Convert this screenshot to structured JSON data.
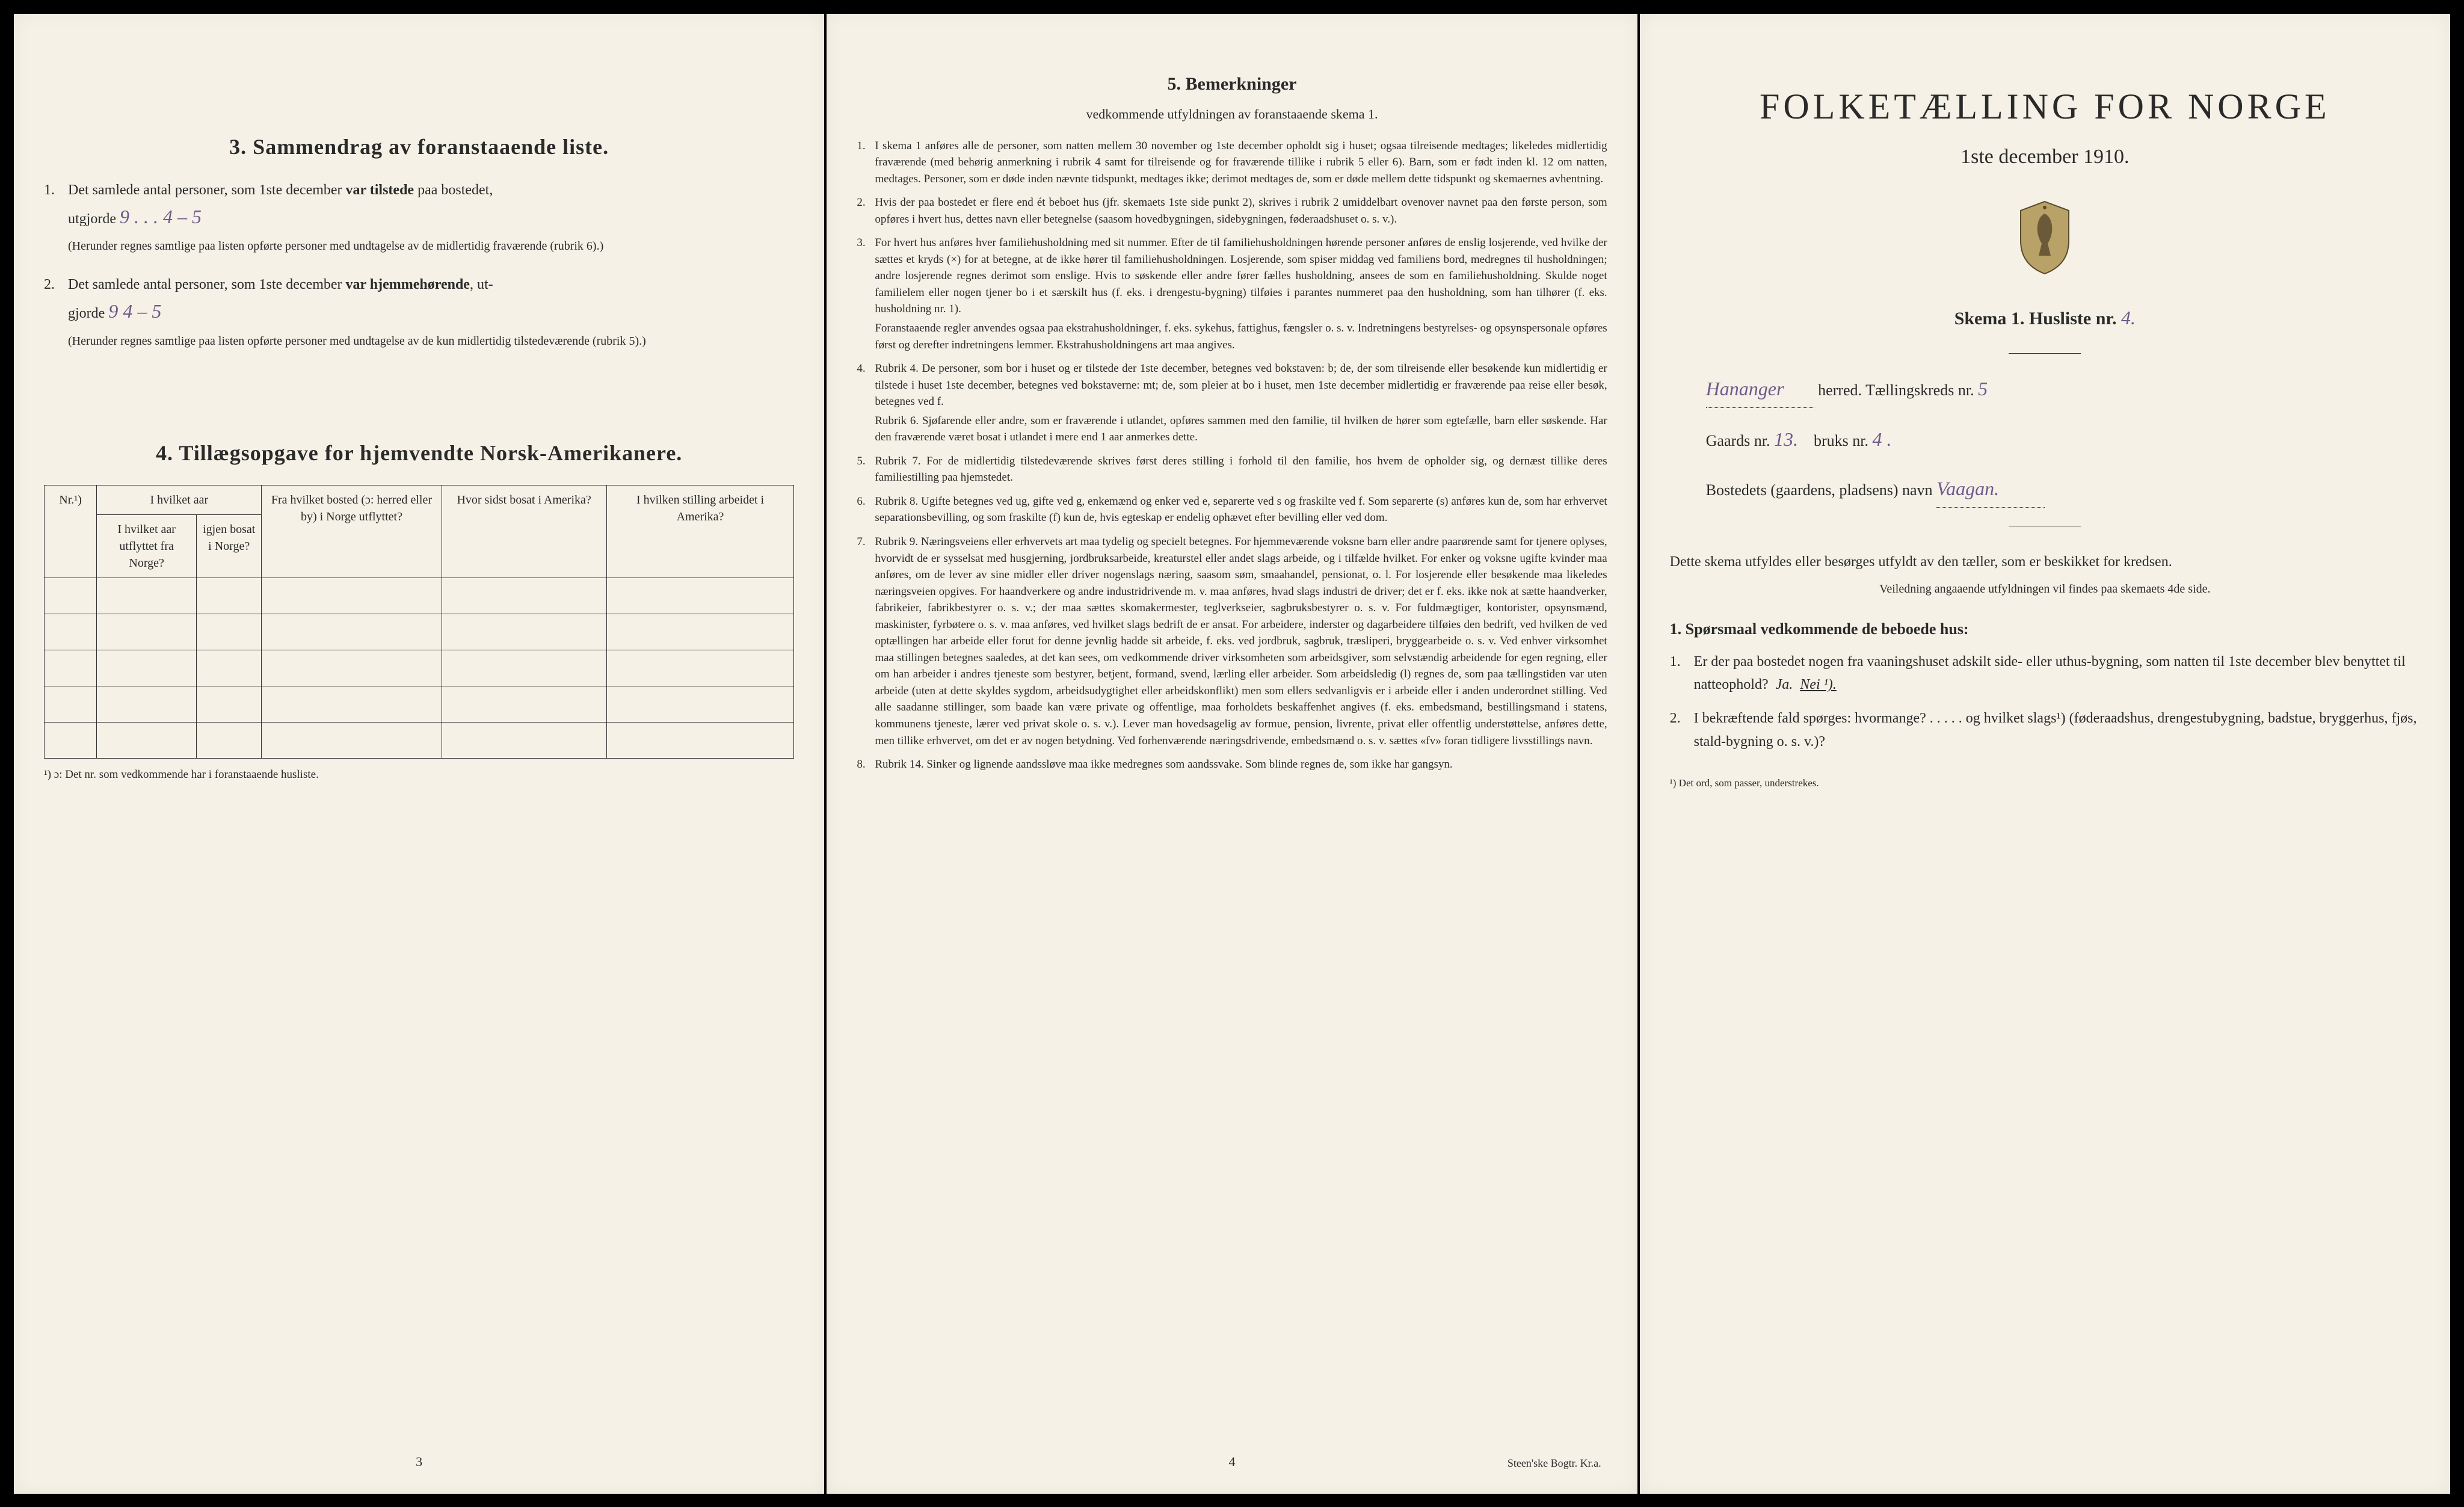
{
  "page1": {
    "section3_title": "3.  Sammendrag av foranstaaende liste.",
    "item1_lead": "Det samlede antal personer, som 1ste december",
    "item1_bold": "var tilstede",
    "item1_tail": "paa bostedet,",
    "item1_line2a": "utgjorde",
    "item1_hand": "9 . . . 4 – 5",
    "item1_note": "(Herunder regnes samtlige paa listen opførte personer med undtagelse av de midlertidig fraværende (rubrik 6).)",
    "item2_lead": "Det samlede antal personer,  som  1ste  december",
    "item2_bold": "var hjemmehørende",
    "item2_tail": ",  ut-",
    "item2_line2a": "gjorde",
    "item2_hand": "9      4 – 5",
    "item2_note": "(Herunder regnes samtlige paa listen opførte personer med undtagelse av de kun midlertidig tilstedeværende (rubrik 5).)",
    "section4_title": "4.  Tillægsopgave for hjemvendte Norsk-Amerikanere.",
    "table": {
      "cols": [
        "Nr.¹)",
        "I hvilket aar utflyttet fra Norge?",
        "igjen bosat i Norge?",
        "Fra hvilket bosted (ɔ: herred eller by) i Norge utflyttet?",
        "Hvor sidst bosat i Amerika?",
        "I hvilken stilling arbeidet i Amerika?"
      ]
    },
    "footnote": "¹) ɔ: Det nr. som vedkommende har i foranstaaende husliste.",
    "pagenum": "3"
  },
  "page2": {
    "title": "5.  Bemerkninger",
    "subtitle": "vedkommende utfyldningen av foranstaaende skema 1.",
    "items": [
      {
        "n": "1.",
        "t": "I skema 1 anføres alle de personer, som natten mellem 30 november og 1ste december opholdt sig i huset; ogsaa tilreisende medtages; likeledes midlertidig fraværende (med behørig anmerkning i rubrik 4 samt for tilreisende og for fraværende tillike i rubrik 5 eller 6). Barn, som er født inden kl. 12 om natten, medtages. Personer, som er døde inden nævnte tidspunkt, medtages ikke; derimot medtages de, som er døde mellem dette tidspunkt og skemaernes avhentning."
      },
      {
        "n": "2.",
        "t": "Hvis der paa bostedet er flere end ét beboet hus (jfr. skemaets 1ste side punkt 2), skrives i rubrik 2 umiddelbart ovenover navnet paa den første person, som opføres i hvert hus, dettes navn eller betegnelse (saasom hovedbygningen, sidebygningen, føderaadshuset o. s. v.)."
      },
      {
        "n": "3.",
        "t": "For hvert hus anføres hver familiehusholdning med sit nummer. Efter de til familiehusholdningen hørende personer anføres de enslig losjerende, ved hvilke der sættes et kryds (×) for at betegne, at de ikke hører til familiehusholdningen. Losjerende, som spiser middag ved familiens bord, medregnes til husholdningen; andre losjerende regnes derimot som enslige. Hvis to søskende eller andre fører fælles husholdning, ansees de som en familiehusholdning. Skulde noget familielem eller nogen tjener bo i et særskilt hus (f. eks. i drengestu-bygning) tilføies i parantes nummeret paa den husholdning, som han tilhører (f. eks. husholdning nr. 1).",
        "sub": "Foranstaaende regler anvendes ogsaa paa ekstrahusholdninger, f. eks. sykehus, fattighus, fængsler o. s. v. Indretningens bestyrelses- og opsynspersonale opføres først og derefter indretningens lemmer. Ekstrahusholdningens art maa angives."
      },
      {
        "n": "4.",
        "t": "Rubrik 4. De personer, som bor i huset og er tilstede der 1ste december, betegnes ved bokstaven: b; de, der som tilreisende eller besøkende kun midlertidig er tilstede i huset 1ste december, betegnes ved bokstaverne: mt; de, som pleier at bo i huset, men 1ste december midlertidig er fraværende paa reise eller besøk, betegnes ved f.",
        "sub": "Rubrik 6. Sjøfarende eller andre, som er fraværende i utlandet, opføres sammen med den familie, til hvilken de hører som egtefælle, barn eller søskende.  Har den fraværende været bosat i utlandet i mere end 1 aar anmerkes dette."
      },
      {
        "n": "5.",
        "t": "Rubrik 7. For de midlertidig tilstedeværende skrives først deres stilling i forhold til den familie, hos hvem de opholder sig, og dernæst tillike deres familiestilling paa hjemstedet."
      },
      {
        "n": "6.",
        "t": "Rubrik 8. Ugifte betegnes ved ug, gifte ved g, enkemænd og enker ved e, separerte ved s og fraskilte ved f. Som separerte (s) anføres kun de, som har erhvervet separationsbevilling, og som fraskilte (f) kun de, hvis egteskap er endelig ophævet efter bevilling eller ved dom."
      },
      {
        "n": "7.",
        "t": "Rubrik 9. Næringsveiens eller erhvervets art maa tydelig og specielt betegnes.  For hjemmeværende voksne barn eller andre paarørende samt for tjenere oplyses, hvorvidt de er sysselsat med husgjerning, jordbruksarbeide, kreaturstel eller andet slags arbeide, og i tilfælde hvilket. For enker og voksne ugifte kvinder maa anføres, om de lever av sine midler eller driver nogenslags næring, saasom søm, smaahandel, pensionat, o. l.  For losjerende eller besøkende maa likeledes næringsveien opgives.  For haandverkere og andre industridrivende m. v. maa anføres, hvad slags industri de driver; det er f. eks. ikke nok at sætte haandverker, fabrikeier, fabrikbestyrer o. s. v.; der maa sættes skomakermester, teglverkseier, sagbruksbestyrer o. s. v.  For fuldmægtiger, kontorister, opsynsmænd, maskinister, fyrbøtere o. s. v. maa anføres, ved hvilket slags bedrift de er ansat.  For arbeidere, inderster og dagarbeidere tilføies den bedrift, ved hvilken de ved optællingen har arbeide eller forut for denne jevnlig hadde sit arbeide, f. eks. ved jordbruk, sagbruk, træsliperi, bryggearbeide o. s. v.  Ved enhver virksomhet maa stillingen betegnes saaledes, at det kan sees, om vedkommende driver virksomheten som arbeidsgiver, som selvstændig arbeidende for egen regning, eller om han arbeider i andres tjeneste som bestyrer, betjent, formand, svend, lærling eller arbeider.  Som arbeidsledig (l) regnes de, som paa tællingstiden var uten arbeide (uten at dette skyldes sygdom, arbeidsudygtighet eller arbeidskonflikt) men som ellers sedvanligvis er i arbeide eller i anden underordnet stilling.  Ved alle saadanne stillinger, som baade kan være private og offentlige, maa forholdets beskaffenhet angives (f. eks. embedsmand, bestillingsmand i statens, kommunens tjeneste, lærer ved privat skole o. s. v.).  Lever man hovedsagelig av formue, pension, livrente, privat eller offentlig understøttelse, anføres dette, men tillike erhvervet, om det er av nogen betydning.  Ved forhenværende næringsdrivende, embedsmænd o. s. v. sættes «fv» foran tidligere livsstillings navn."
      },
      {
        "n": "8.",
        "t": "Rubrik 14. Sinker og lignende aandssløve maa ikke medregnes som aandssvake.  Som blinde regnes de, som ikke har gangsyn."
      }
    ],
    "pagenum": "4",
    "printer": "Steen'ske Bogtr. Kr.a."
  },
  "page3": {
    "big_title": "FOLKETÆLLING FOR NORGE",
    "date": "1ste december 1910.",
    "skema": "Skema 1.  Husliste nr.",
    "husliste_nr": "4.",
    "herred_hand": "Hananger",
    "herred_label": "herred.  Tællingskreds nr.",
    "tkreds": "5",
    "gaards_label": "Gaards nr.",
    "gaards_nr": "13.",
    "bruks_label": "bruks nr.",
    "bruks_nr": "4 .",
    "bosted_label": "Bostedets (gaardens, pladsens) navn",
    "bosted_hand": "Vaagan.",
    "instruct": "Dette skema utfyldes eller besørges utfyldt av den tæller, som er beskikket for kredsen.",
    "instruct_small": "Veiledning angaaende utfyldningen vil findes paa skemaets 4de side.",
    "q_header": "1. Spørsmaal vedkommende de beboede hus:",
    "q1": "Er der paa bostedet nogen fra vaaningshuset adskilt side- eller uthus-bygning, som natten til 1ste december blev benyttet til natteophold?",
    "q1_ja": "Ja.",
    "q1_nei": "Nei ¹).",
    "q2": "I bekræftende fald spørges: hvormange? . . . . . og hvilket slags¹) (føderaadshus, drengestubygning, badstue, bryggerhus, fjøs, stald-bygning o. s. v.)?",
    "footnote": "¹) Det ord, som passer, understrekes."
  },
  "colors": {
    "paper": "#f5f1e6",
    "ink": "#2a2a2a",
    "handwriting": "#6b5b8c",
    "bg": "#000000"
  }
}
